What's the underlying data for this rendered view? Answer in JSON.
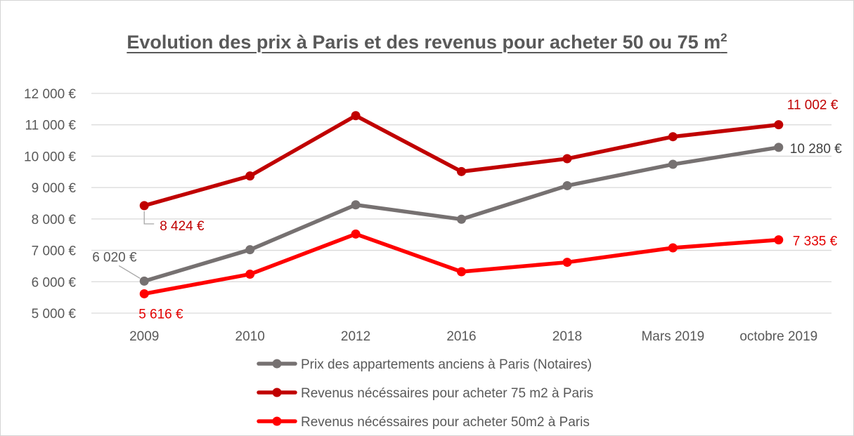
{
  "chart_data": {
    "type": "line",
    "title": "Evolution des prix à Paris et des revenus pour acheter 50 ou 75 m",
    "title_superscript": "2",
    "categories": [
      "2009",
      "2010",
      "2012",
      "2016",
      "2018",
      "Mars 2019",
      "octobre 2019"
    ],
    "ylim": [
      5000,
      12000
    ],
    "yticks": [
      {
        "value": 12000,
        "label": "12 000 €"
      },
      {
        "value": 11000,
        "label": "11 000 €"
      },
      {
        "value": 10000,
        "label": "10 000 €"
      },
      {
        "value": 9000,
        "label": "9 000 €"
      },
      {
        "value": 8000,
        "label": "8 000 €"
      },
      {
        "value": 7000,
        "label": "7 000 €"
      },
      {
        "value": 6000,
        "label": "6 000 €"
      },
      {
        "value": 5000,
        "label": "5 000 €"
      }
    ],
    "grid": true,
    "legend_position": "bottom",
    "series": [
      {
        "name": "Prix des appartements anciens à Paris (Notaires)",
        "color": "#767171",
        "values": [
          6020,
          7020,
          8450,
          7990,
          9060,
          9740,
          10280
        ],
        "labels": [
          {
            "index": 0,
            "text": "6 020 €",
            "color": "#595959"
          },
          {
            "index": 6,
            "text": "10 280 €",
            "color": "#404040"
          }
        ]
      },
      {
        "name": "Revenus nécéssaires pour acheter 75 m2 à Paris",
        "color": "#c00000",
        "values": [
          8424,
          9370,
          11290,
          9510,
          9920,
          10620,
          11002
        ],
        "labels": [
          {
            "index": 0,
            "text": "8 424 €",
            "color": "#c00000"
          },
          {
            "index": 6,
            "text": "11 002 €",
            "color": "#c00000"
          }
        ]
      },
      {
        "name": "Revenus nécéssaires pour acheter 50m2 à Paris",
        "color": "#ff0000",
        "values": [
          5616,
          6240,
          7520,
          6320,
          6620,
          7080,
          7335
        ],
        "labels": [
          {
            "index": 0,
            "text": "5 616 €",
            "color": "#e30000"
          },
          {
            "index": 6,
            "text": "7 335 €",
            "color": "#e30000"
          }
        ]
      }
    ]
  }
}
